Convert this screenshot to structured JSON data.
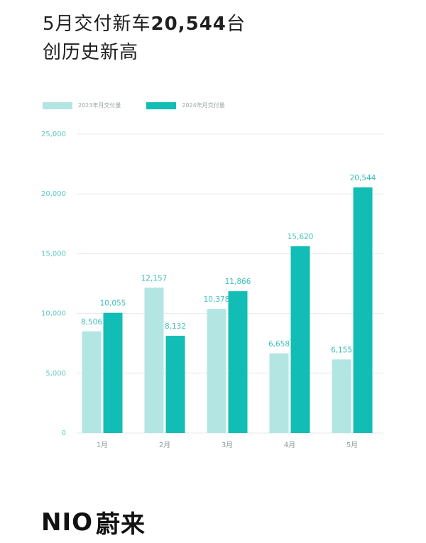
{
  "headline": {
    "line1_prefix": "5月交付新车",
    "line1_number": "20,544",
    "line1_suffix": "台",
    "line2": "创历史新高"
  },
  "colors": {
    "series_2023": "#b3e6e2",
    "series_2024": "#12bdb5",
    "grid": "#e4e9e9",
    "label": "#3dbfb7",
    "axis_text": "#5ec8c1"
  },
  "chart_data": {
    "type": "bar",
    "categories": [
      "1月",
      "2月",
      "3月",
      "4月",
      "5月"
    ],
    "series": [
      {
        "name": "2023年月交付量",
        "values": [
          8506,
          12157,
          10378,
          6658,
          6155
        ],
        "labels": [
          "8,506",
          "12,157",
          "10,378",
          "6,658",
          "6,155"
        ]
      },
      {
        "name": "2024年月交付量",
        "values": [
          10055,
          8132,
          11866,
          15620,
          20544
        ],
        "labels": [
          "10,055",
          "8,132",
          "11,866",
          "15,620",
          "20,544"
        ]
      }
    ],
    "yticks": [
      0,
      5000,
      10000,
      15000,
      20000,
      25000
    ],
    "ytick_labels": [
      "0",
      "5,000",
      "10,000",
      "15,000",
      "20,000",
      "25,000"
    ],
    "ylim": [
      0,
      25000
    ],
    "grid": true,
    "legend": "top-left"
  },
  "logo": {
    "latin": "NIO",
    "cjk": "蔚来"
  }
}
